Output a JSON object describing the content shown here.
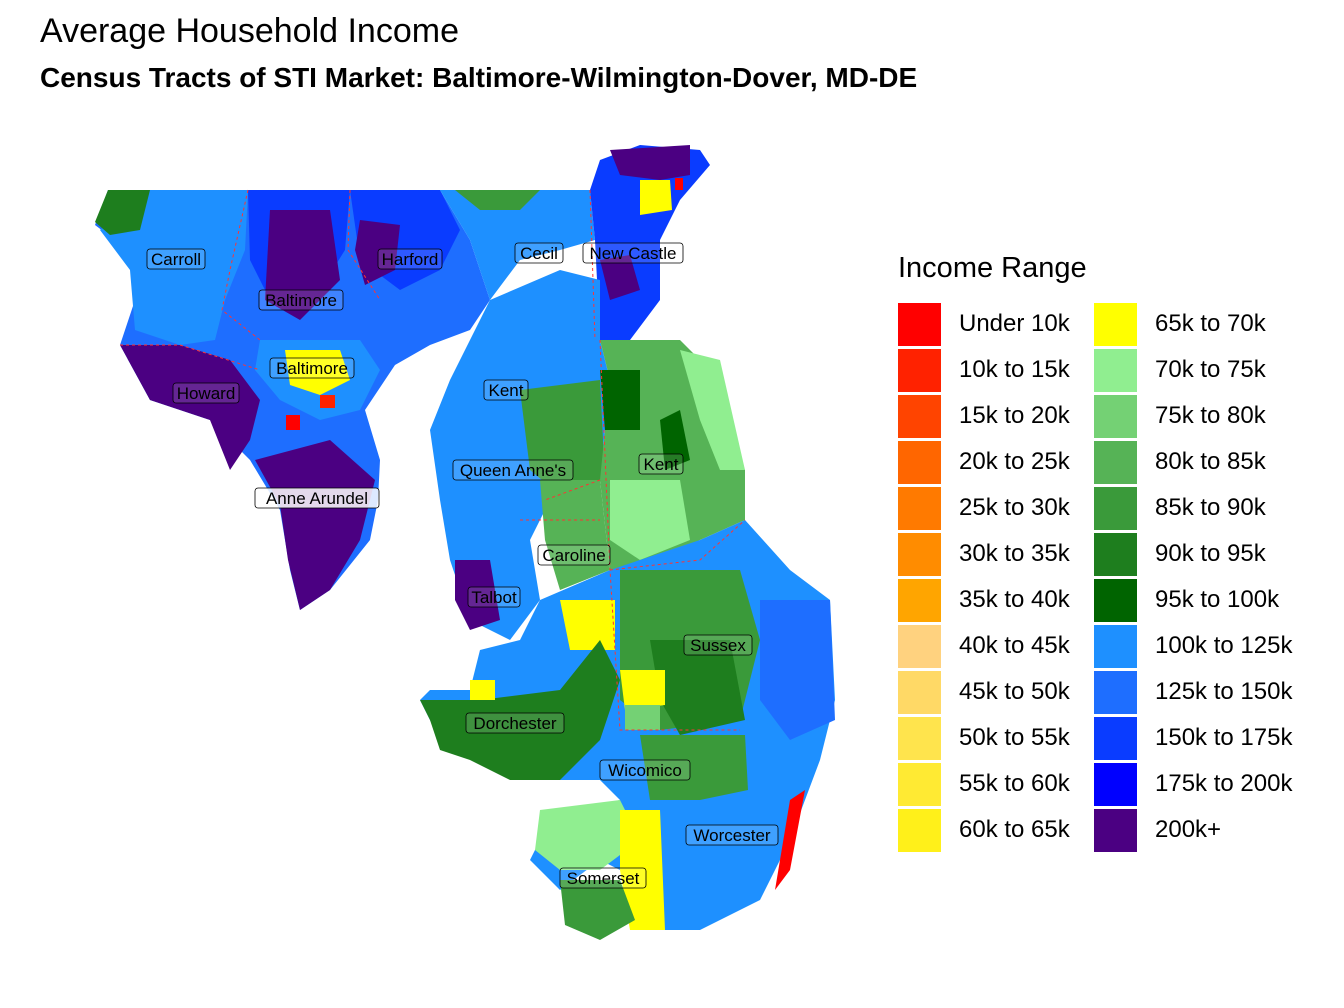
{
  "title": "Average Household Income",
  "subtitle": "Census Tracts of STI Market: Baltimore-Wilmington-Dover, MD-DE",
  "legend": {
    "title": "Income Range",
    "items": [
      {
        "label": "Under 10k",
        "color": "#FF0000"
      },
      {
        "label": "10k to 15k",
        "color": "#FF2200"
      },
      {
        "label": "15k to 20k",
        "color": "#FF4400"
      },
      {
        "label": "20k to 25k",
        "color": "#FF6600"
      },
      {
        "label": "25k to 30k",
        "color": "#FF7A00"
      },
      {
        "label": "30k to 35k",
        "color": "#FF8C00"
      },
      {
        "label": "35k to 40k",
        "color": "#FFA500"
      },
      {
        "label": "40k to 45k",
        "color": "#FFD27F"
      },
      {
        "label": "45k to 50k",
        "color": "#FFD966"
      },
      {
        "label": "50k to 55k",
        "color": "#FFE44D"
      },
      {
        "label": "55k to 60k",
        "color": "#FFEA33"
      },
      {
        "label": "60k to 65k",
        "color": "#FFF01A"
      },
      {
        "label": "65k to 70k",
        "color": "#FFFF00"
      },
      {
        "label": "70k to 75k",
        "color": "#90EE90"
      },
      {
        "label": "75k to 80k",
        "color": "#74D174"
      },
      {
        "label": "80k to 85k",
        "color": "#56B356"
      },
      {
        "label": "85k to 90k",
        "color": "#3A9A3A"
      },
      {
        "label": "90k to 95k",
        "color": "#1E7E1E"
      },
      {
        "label": "95k to 100k",
        "color": "#006400"
      },
      {
        "label": "100k to 125k",
        "color": "#1E90FF"
      },
      {
        "label": "125k to 150k",
        "color": "#1E6EFF"
      },
      {
        "label": "150k to 175k",
        "color": "#0A3CFF"
      },
      {
        "label": "175k to 200k",
        "color": "#0000FF"
      },
      {
        "label": "200k+",
        "color": "#4B0082"
      }
    ]
  },
  "counties": [
    "Carroll",
    "Harford",
    "Cecil",
    "New Castle",
    "Baltimore",
    "Baltimore",
    "Howard",
    "Kent",
    "Kent",
    "Queen Anne's",
    "Anne Arundel",
    "Caroline",
    "Talbot",
    "Sussex",
    "Dorchester",
    "Wicomico",
    "Worcester",
    "Somerset"
  ]
}
